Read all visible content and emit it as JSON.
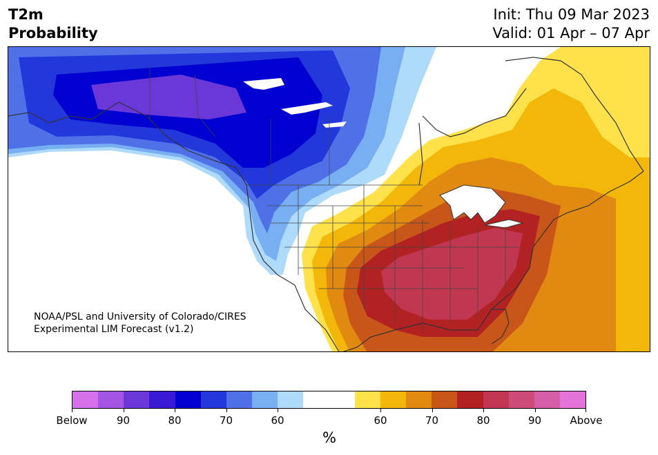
{
  "header": {
    "title_line1": "T2m",
    "title_line2": "Probability",
    "init_text": "Init: Thu 09 Mar 2023",
    "valid_text": "Valid: 01 Apr – 07 Apr"
  },
  "map": {
    "credit_line1": "NOAA/PSL and University of Colorado/CIRES",
    "credit_line2": "Experimental LIM Forecast (v1.2)"
  },
  "colorbar": {
    "unit_label": "%",
    "colors": [
      "#d670ea",
      "#a555e3",
      "#6c37d8",
      "#3a1ad6",
      "#0000d0",
      "#2238db",
      "#4f70e7",
      "#78aef2",
      "#aedbfb",
      "#ffffff",
      "#ffffff",
      "#ffe14a",
      "#f3b70a",
      "#e08a12",
      "#c85619",
      "#b22222",
      "#c13650",
      "#cc4b78",
      "#d65ea6",
      "#e474d8"
    ],
    "tick_labels": [
      "Below",
      "90",
      "80",
      "70",
      "60",
      "60",
      "70",
      "80",
      "90",
      "Above"
    ]
  },
  "legend_colors": {
    "below_strong": "#0000d0",
    "below_weak": "#aedbfb",
    "above_weak": "#ffe14a",
    "above_strong": "#c13650"
  }
}
